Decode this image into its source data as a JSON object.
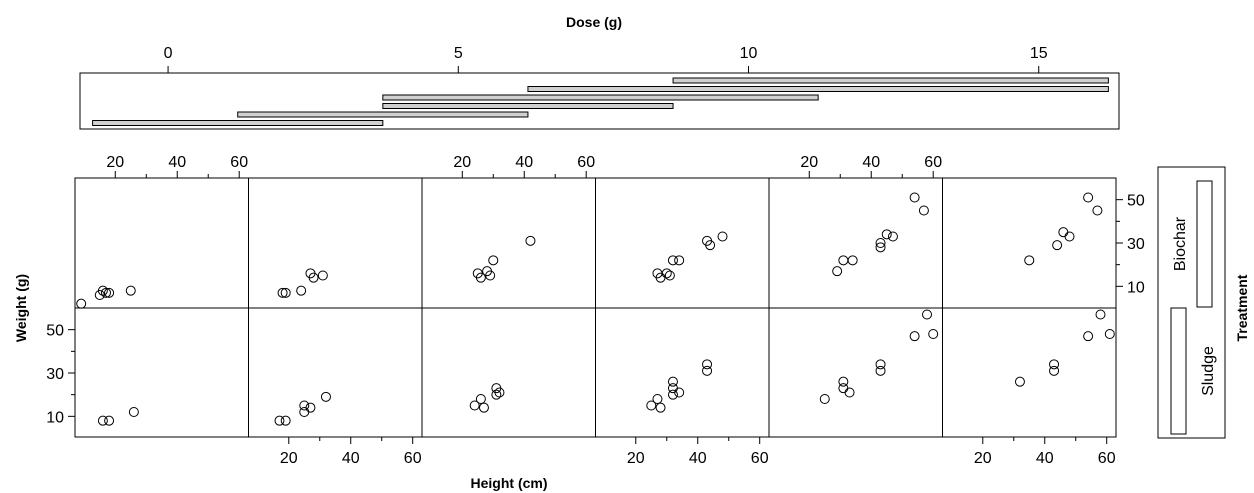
{
  "chart_data": {
    "type": "scatter",
    "title": "",
    "xlabel": "Height (cm)",
    "ylabel": "Weight (g)",
    "top_axis_label": "Dose (g)",
    "right_axis_label": "Treatment",
    "x_ticks": [
      20,
      40,
      60
    ],
    "y_ticks": [
      10,
      30,
      50
    ],
    "dose_ticks": [
      0,
      5,
      10,
      15
    ],
    "treatment_levels": [
      "Sludge",
      "Biochar"
    ],
    "shingle_intervals": [
      [
        -1.3,
        3.7
      ],
      [
        1.2,
        6.2
      ],
      [
        3.7,
        8.7
      ],
      [
        3.7,
        11.2
      ],
      [
        6.2,
        16.2
      ],
      [
        8.7,
        16.2
      ]
    ],
    "panels": [
      {
        "treatment": "Sludge",
        "dose_interval": 1,
        "points": [
          [
            16,
            8
          ],
          [
            18,
            8
          ],
          [
            26,
            12
          ]
        ]
      },
      {
        "treatment": "Sludge",
        "dose_interval": 2,
        "points": [
          [
            17,
            8
          ],
          [
            19,
            8
          ],
          [
            25,
            12
          ],
          [
            25,
            15
          ],
          [
            27,
            14
          ],
          [
            32,
            19
          ]
        ]
      },
      {
        "treatment": "Sludge",
        "dose_interval": 3,
        "points": [
          [
            24,
            15
          ],
          [
            26,
            18
          ],
          [
            27,
            14
          ],
          [
            31,
            20
          ],
          [
            31,
            23
          ],
          [
            32,
            21
          ]
        ]
      },
      {
        "treatment": "Sludge",
        "dose_interval": 4,
        "points": [
          [
            25,
            15
          ],
          [
            27,
            18
          ],
          [
            28,
            14
          ],
          [
            32,
            20
          ],
          [
            32,
            23
          ],
          [
            32,
            26
          ],
          [
            34,
            21
          ],
          [
            43,
            31
          ],
          [
            43,
            34
          ]
        ]
      },
      {
        "treatment": "Sludge",
        "dose_interval": 5,
        "points": [
          [
            25,
            18
          ],
          [
            31,
            26
          ],
          [
            31,
            23
          ],
          [
            33,
            21
          ],
          [
            43,
            31
          ],
          [
            43,
            34
          ],
          [
            54,
            47
          ],
          [
            58,
            57
          ],
          [
            60,
            48
          ]
        ]
      },
      {
        "treatment": "Sludge",
        "dose_interval": 6,
        "points": [
          [
            32,
            26
          ],
          [
            43,
            31
          ],
          [
            43,
            34
          ],
          [
            54,
            47
          ],
          [
            58,
            57
          ],
          [
            61,
            48
          ]
        ]
      },
      {
        "treatment": "Biochar",
        "dose_interval": 1,
        "points": [
          [
            9,
            2
          ],
          [
            15,
            6
          ],
          [
            16,
            8
          ],
          [
            17,
            7
          ],
          [
            18,
            7
          ],
          [
            25,
            8
          ]
        ]
      },
      {
        "treatment": "Biochar",
        "dose_interval": 2,
        "points": [
          [
            18,
            7
          ],
          [
            19,
            7
          ],
          [
            24,
            8
          ],
          [
            27,
            16
          ],
          [
            28,
            14
          ],
          [
            31,
            15
          ]
        ]
      },
      {
        "treatment": "Biochar",
        "dose_interval": 3,
        "points": [
          [
            25,
            16
          ],
          [
            26,
            14
          ],
          [
            28,
            17
          ],
          [
            29,
            15
          ],
          [
            30,
            22
          ],
          [
            42,
            31
          ]
        ]
      },
      {
        "treatment": "Biochar",
        "dose_interval": 4,
        "points": [
          [
            27,
            16
          ],
          [
            28,
            14
          ],
          [
            30,
            16
          ],
          [
            31,
            15
          ],
          [
            32,
            22
          ],
          [
            34,
            22
          ],
          [
            43,
            31
          ],
          [
            44,
            29
          ],
          [
            48,
            33
          ]
        ]
      },
      {
        "treatment": "Biochar",
        "dose_interval": 5,
        "points": [
          [
            29,
            17
          ],
          [
            31,
            22
          ],
          [
            34,
            22
          ],
          [
            43,
            30
          ],
          [
            43,
            28
          ],
          [
            45,
            34
          ],
          [
            47,
            33
          ],
          [
            54,
            51
          ],
          [
            57,
            45
          ]
        ]
      },
      {
        "treatment": "Biochar",
        "dose_interval": 6,
        "points": [
          [
            35,
            22
          ],
          [
            44,
            29
          ],
          [
            46,
            35
          ],
          [
            48,
            33
          ],
          [
            54,
            51
          ],
          [
            57,
            45
          ]
        ]
      }
    ],
    "marker": "open-circle",
    "grid": false
  }
}
